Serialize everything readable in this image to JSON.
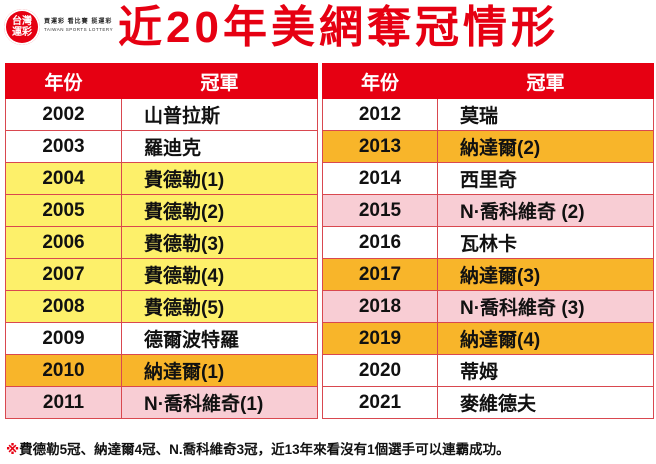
{
  "logo": {
    "line1": "台灣",
    "line2": "運彩",
    "tagline": "買運彩 看比賽 挺運彩",
    "tagline_en": "TAIWAN SPORTS LOTTERY"
  },
  "title": "近20年美網奪冠情形",
  "colors": {
    "accent": "#e60012",
    "federer": "#fdf06a",
    "nadal": "#f8b52a",
    "djokovic": "#f8cdd4",
    "other": "#ffffff"
  },
  "table_left": {
    "headers": {
      "year": "年份",
      "champion": "冠軍"
    },
    "rows": [
      {
        "year": "2002",
        "champion": "山普拉斯",
        "color": "white"
      },
      {
        "year": "2003",
        "champion": "羅迪克",
        "color": "white"
      },
      {
        "year": "2004",
        "champion": "費德勒(1)",
        "color": "yellow"
      },
      {
        "year": "2005",
        "champion": "費德勒(2)",
        "color": "yellow"
      },
      {
        "year": "2006",
        "champion": "費德勒(3)",
        "color": "yellow"
      },
      {
        "year": "2007",
        "champion": "費德勒(4)",
        "color": "yellow"
      },
      {
        "year": "2008",
        "champion": "費德勒(5)",
        "color": "yellow"
      },
      {
        "year": "2009",
        "champion": "德爾波特羅",
        "color": "white"
      },
      {
        "year": "2010",
        "champion": "納達爾(1)",
        "color": "orange"
      },
      {
        "year": "2011",
        "champion": "N·喬科維奇(1)",
        "color": "pink"
      }
    ]
  },
  "table_right": {
    "headers": {
      "year": "年份",
      "champion": "冠軍"
    },
    "rows": [
      {
        "year": "2012",
        "champion": "莫瑞",
        "color": "white"
      },
      {
        "year": "2013",
        "champion": "納達爾(2)",
        "color": "orange"
      },
      {
        "year": "2014",
        "champion": "西里奇",
        "color": "white"
      },
      {
        "year": "2015",
        "champion": "N·喬科維奇 (2)",
        "color": "pink"
      },
      {
        "year": "2016",
        "champion": "瓦林卡",
        "color": "white"
      },
      {
        "year": "2017",
        "champion": "納達爾(3)",
        "color": "orange"
      },
      {
        "year": "2018",
        "champion": "N·喬科維奇 (3)",
        "color": "pink"
      },
      {
        "year": "2019",
        "champion": "納達爾(4)",
        "color": "orange"
      },
      {
        "year": "2020",
        "champion": "蒂姆",
        "color": "white"
      },
      {
        "year": "2021",
        "champion": "麥維德夫",
        "color": "white"
      }
    ]
  },
  "note": {
    "mark": "※",
    "text": "費德勒5冠、納達爾4冠、N.喬科維奇3冠，近13年來看沒有1個選手可以連霸成功。"
  }
}
